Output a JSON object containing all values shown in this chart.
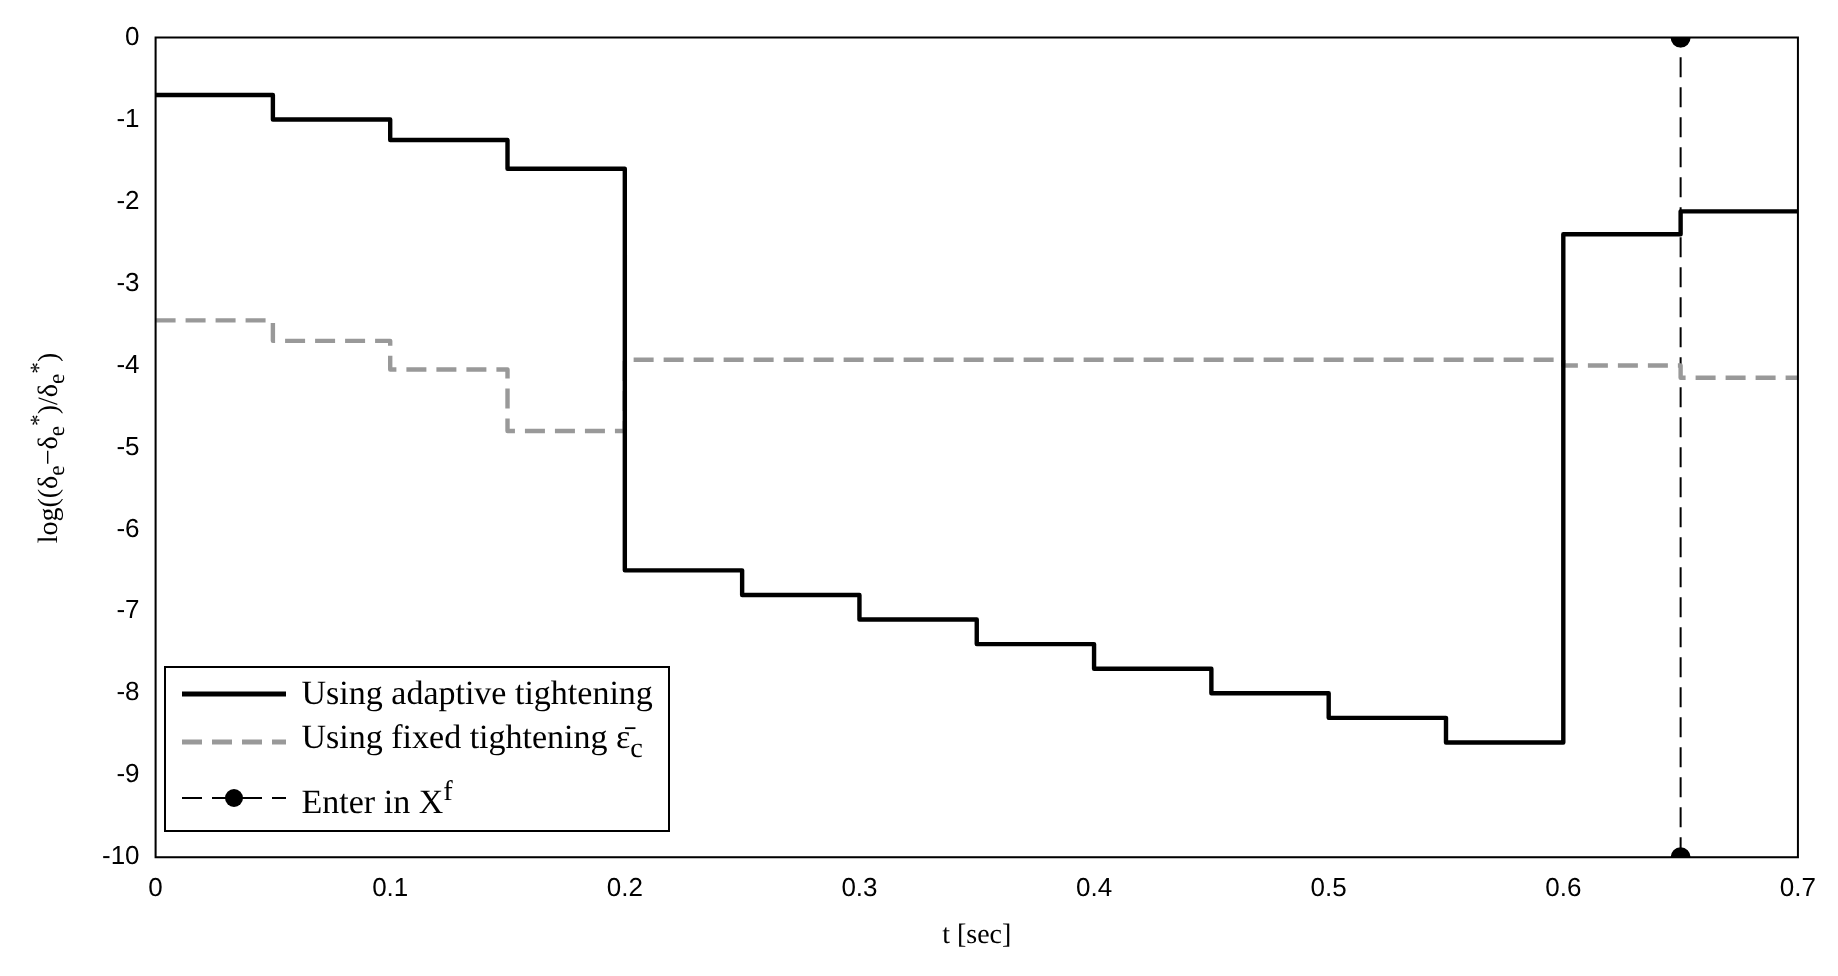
{
  "chart_data": {
    "type": "step",
    "xlabel": "t [sec]",
    "ylabel": "log((δ$_{e}$−δ$_{e}$$^{*}$)/δ$_{e}$$^{*}$)",
    "xlim": [
      0,
      0.7
    ],
    "ylim": [
      -10,
      0
    ],
    "xticks": [
      0,
      0.1,
      0.2,
      0.3,
      0.4,
      0.5,
      0.6,
      0.7
    ],
    "yticks": [
      -10,
      -9,
      -8,
      -7,
      -6,
      -5,
      -4,
      -3,
      -2,
      -1,
      0
    ],
    "legend": "bottom left",
    "series": [
      {
        "name": "Using adaptive tightening",
        "color": "#000000",
        "line_style": "solid",
        "x": [
          0,
          0.05,
          0.1,
          0.15,
          0.2,
          0.25,
          0.3,
          0.35,
          0.4,
          0.45,
          0.5,
          0.55,
          0.6,
          0.65,
          0.7
        ],
        "values": [
          -0.7,
          -1.0,
          -1.25,
          -1.6,
          -6.5,
          -6.8,
          -7.1,
          -7.4,
          -7.7,
          -8.0,
          -8.3,
          -8.6,
          -2.4,
          -2.12,
          -2.12
        ]
      },
      {
        "name": "Using fixed tightening ε̄$_{c}$",
        "color": "#999999",
        "line_style": "dashed",
        "x": [
          0,
          0.05,
          0.1,
          0.15,
          0.2,
          0.6,
          0.65,
          0.7
        ],
        "values": [
          -3.45,
          -3.7,
          -4.05,
          -4.8,
          -3.93,
          -4.0,
          -4.15,
          -4.15
        ]
      },
      {
        "name": "Enter in X$^{f}$",
        "type": "line",
        "color": "#000000",
        "line_style": "dashed",
        "marker": "circle",
        "x": [
          0.65,
          0.65
        ],
        "values": [
          -10,
          0
        ]
      }
    ]
  }
}
